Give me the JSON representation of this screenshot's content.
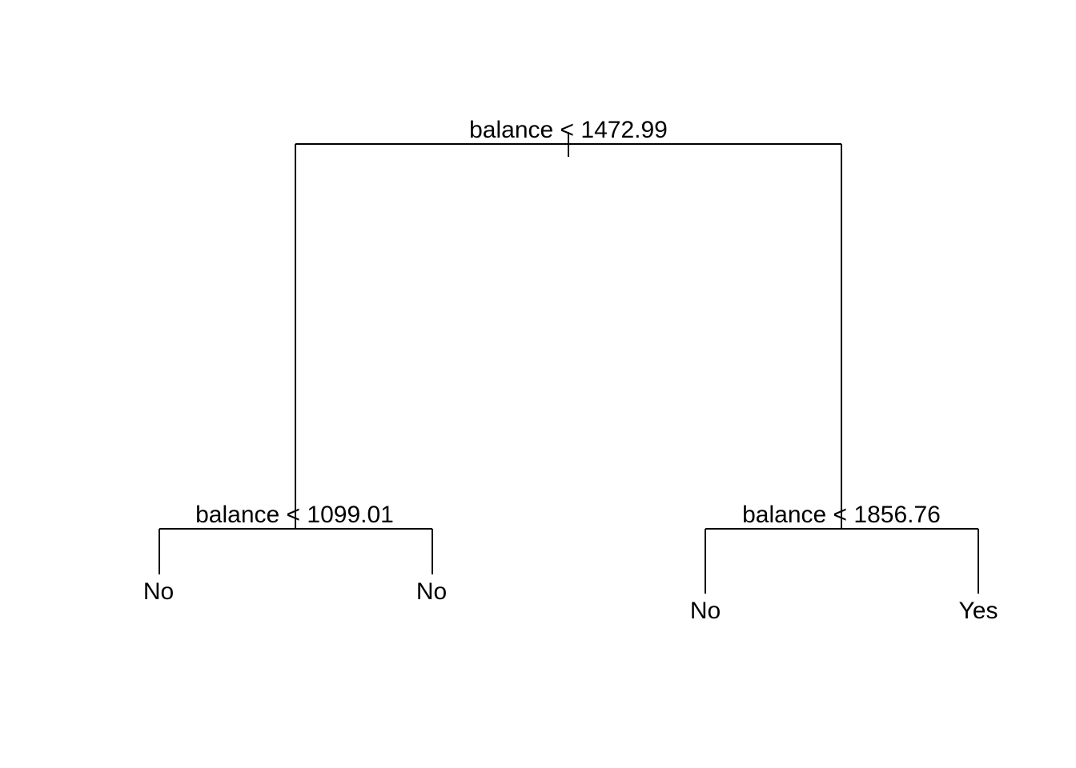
{
  "tree": {
    "root": {
      "split": "balance < 1472.99"
    },
    "left": {
      "split": "balance < 1099.01",
      "left_leaf": "No",
      "right_leaf": "No"
    },
    "right": {
      "split": "balance < 1856.76",
      "left_leaf": "No",
      "right_leaf": "Yes"
    }
  }
}
